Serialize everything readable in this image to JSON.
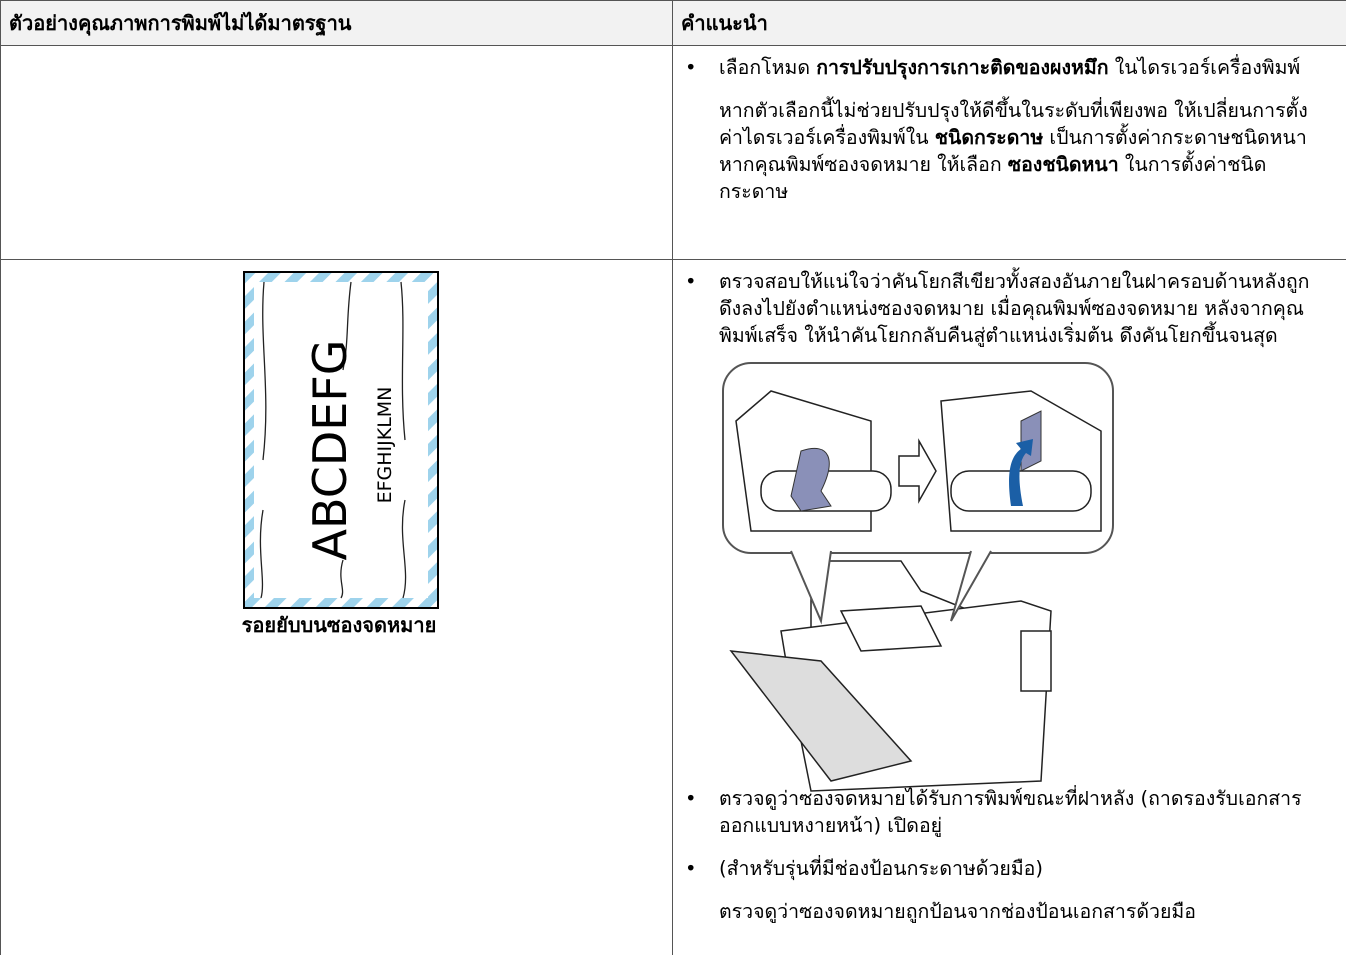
{
  "header": {
    "columns": [
      "ตัวอย่างคุณภาพการพิมพ์ไม่ได้มาตรฐาน",
      "คำแนะนำ"
    ]
  },
  "table": {
    "rows": [
      {
        "right": {
          "items": [
            {
              "bullet": true,
              "segments": [
                {
                  "text": "เลือกโหมด "
                },
                {
                  "text": "การปรับปรุงการเกาะติดของผงหมึก",
                  "bold": true
                },
                {
                  "text": " ในไดรเวอร์เครื่องพิมพ์"
                }
              ]
            },
            {
              "segments": [
                {
                  "text": "หากตัวเลือกนี้ไม่ช่วยปรับปรุงให้ดีขึ้นในระดับที่เพียงพอ ให้เปลี่ยนการตั้งค่าไดรเวอร์เครื่องพิมพ์ใน "
                },
                {
                  "text": "ชนิดกระดาษ",
                  "bold": true
                },
                {
                  "text": " เป็นการตั้งค่ากระดาษชนิดหนา หากคุณพิมพ์ซองจดหมาย ให้เลือก "
                },
                {
                  "text": "ซองชนิดหนา",
                  "bold": true
                },
                {
                  "text": " ในการตั้งค่าชนิดกระดาษ"
                }
              ]
            }
          ]
        }
      },
      {
        "left": {
          "envelope": {
            "large_text": "ABCDEFG",
            "small_text": "EFGHIJKLMN",
            "caption": "รอยยับบนซองจดหมาย"
          }
        },
        "right": {
          "items": [
            {
              "bullet": true,
              "segments": [
                {
                  "text": "ตรวจสอบให้แน่ใจว่าคันโยกสีเขียวทั้งสองอันภายในฝาครอบด้านหลังถูกดึงลงไปยังตำแหน่งซองจดหมาย เมื่อคุณพิมพ์ซองจดหมาย หลังจากคุณพิมพ์เสร็จ ให้นำคันโยกกลับคืนสู่ตำแหน่งเริ่มต้น ดึงคันโยกขึ้นจนสุด"
                }
              ]
            },
            {
              "bullet": true,
              "segments": [
                {
                  "text": "ตรวจดูว่าซองจดหมายได้รับการพิมพ์ขณะที่ฝาหลัง (ถาดรองรับเอกสารออกแบบหงายหน้า) เปิดอยู่"
                }
              ]
            },
            {
              "bullet": true,
              "segments": [
                {
                  "text": "(สำหรับรุ่นที่มีช่องป้อนกระดาษด้วยมือ)"
                }
              ]
            },
            {
              "segments": [
                {
                  "text": "ตรวจดูว่าซองจดหมายถูกป้อนจากช่องป้อนเอกสารด้วยมือ"
                }
              ]
            }
          ]
        }
      }
    ]
  }
}
